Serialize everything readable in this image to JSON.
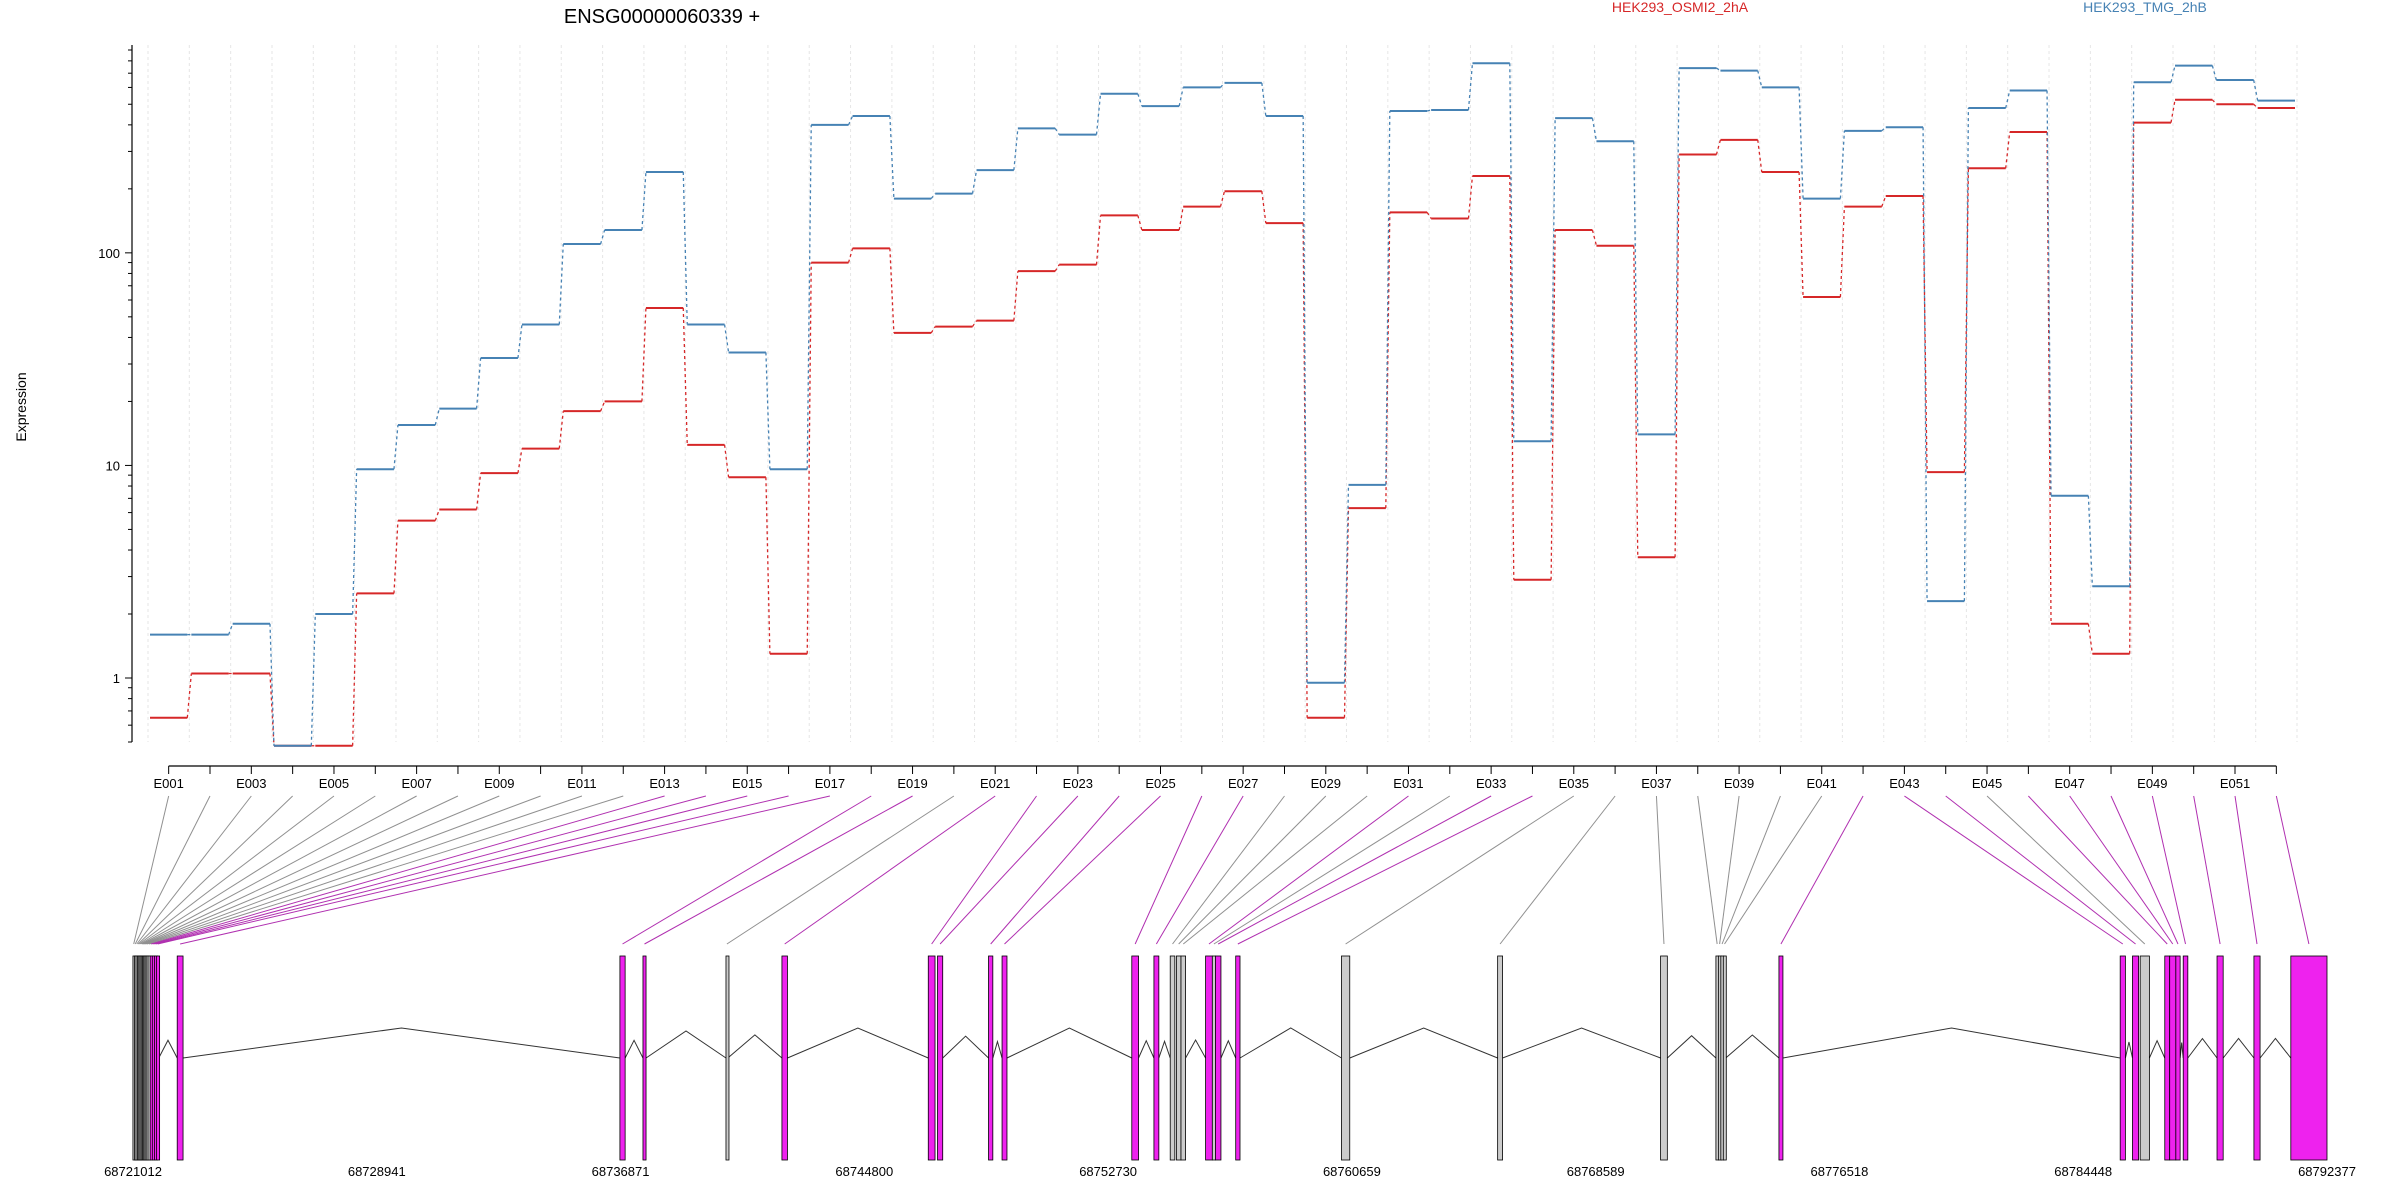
{
  "chart_data": {
    "type": "line",
    "title": "ENSG00000060339 +",
    "ylabel": "Expression",
    "xlabel": "",
    "yscale": "log",
    "ylim": [
      0.5,
      950
    ],
    "yticks": [
      1,
      10,
      100
    ],
    "ytick_labels": [
      "1",
      "10",
      "100"
    ],
    "grid": "vertical",
    "legend_position": "top",
    "categories": [
      "E001",
      "E002",
      "E003",
      "E004",
      "E005",
      "E006",
      "E007",
      "E008",
      "E009",
      "E010",
      "E011",
      "E012",
      "E013",
      "E014",
      "E015",
      "E016",
      "E017",
      "E018",
      "E019",
      "E020",
      "E021",
      "E022",
      "E023",
      "E024",
      "E025",
      "E026",
      "E027",
      "E028",
      "E029",
      "E030",
      "E031",
      "E032",
      "E033",
      "E034",
      "E035",
      "E036",
      "E037",
      "E038",
      "E039",
      "E040",
      "E041",
      "E042",
      "E043",
      "E044",
      "E045",
      "E046",
      "E047",
      "E048",
      "E049",
      "E050",
      "E051",
      "E052"
    ],
    "tick_labels": [
      "E001",
      "E003",
      "E005",
      "E007",
      "E009",
      "E011",
      "E013",
      "E015",
      "E017",
      "E019",
      "E021",
      "E023",
      "E025",
      "E027",
      "E029",
      "E031",
      "E033",
      "E035",
      "E037",
      "E039",
      "E041",
      "E043",
      "E045",
      "E047",
      "E049",
      "E051"
    ],
    "series": [
      {
        "name": "HEK293_OSMI2_2hA",
        "color": "#d62728",
        "values": [
          0.65,
          1.05,
          1.05,
          0.48,
          0.48,
          2.5,
          5.5,
          6.2,
          9.2,
          12,
          18,
          20,
          55,
          12.5,
          8.8,
          1.3,
          90,
          105,
          42,
          45,
          48,
          82,
          88,
          150,
          128,
          165,
          195,
          138,
          0.65,
          6.3,
          155,
          145,
          230,
          2.9,
          128,
          108,
          3.7,
          290,
          340,
          240,
          62,
          165,
          185,
          9.3,
          250,
          370,
          1.8,
          1.3,
          410,
          525,
          500,
          480
        ]
      },
      {
        "name": "HEK293_TMG_2hB",
        "color": "#4682b4",
        "values": [
          1.6,
          1.6,
          1.8,
          0.48,
          2.0,
          9.6,
          15.5,
          18.5,
          32,
          46,
          110,
          128,
          240,
          46,
          34,
          9.6,
          400,
          440,
          180,
          190,
          245,
          385,
          360,
          560,
          490,
          600,
          630,
          440,
          0.95,
          8.1,
          465,
          470,
          780,
          13,
          430,
          335,
          14,
          740,
          720,
          600,
          180,
          375,
          390,
          2.3,
          480,
          580,
          7.2,
          2.7,
          635,
          760,
          650,
          520
        ]
      }
    ],
    "genome": {
      "start": 68721012,
      "end": 68792377,
      "axis_labels": [
        "68721012",
        "68728941",
        "68736871",
        "68744800",
        "68752730",
        "68760659",
        "68768589",
        "68776518",
        "68784448",
        "68792377"
      ],
      "exons": [
        {
          "id": "E001",
          "start": 68721010,
          "end": 68721060,
          "sig": false
        },
        {
          "id": "E002",
          "start": 68721060,
          "end": 68721110,
          "sig": false
        },
        {
          "id": "E003",
          "start": 68721110,
          "end": 68721160,
          "sig": false
        },
        {
          "id": "E004",
          "start": 68721160,
          "end": 68721200,
          "sig": false
        },
        {
          "id": "E005",
          "start": 68721200,
          "end": 68721240,
          "sig": false
        },
        {
          "id": "E006",
          "start": 68721240,
          "end": 68721280,
          "sig": false
        },
        {
          "id": "E007",
          "start": 68721280,
          "end": 68721320,
          "sig": false
        },
        {
          "id": "E008",
          "start": 68721320,
          "end": 68721360,
          "sig": false
        },
        {
          "id": "E009",
          "start": 68721360,
          "end": 68721400,
          "sig": false
        },
        {
          "id": "E010",
          "start": 68721400,
          "end": 68721440,
          "sig": false
        },
        {
          "id": "E011",
          "start": 68721440,
          "end": 68721500,
          "sig": false
        },
        {
          "id": "E012",
          "start": 68721500,
          "end": 68721570,
          "sig": false
        },
        {
          "id": "E013",
          "start": 68721570,
          "end": 68721640,
          "sig": true
        },
        {
          "id": "E014",
          "start": 68721640,
          "end": 68721710,
          "sig": true
        },
        {
          "id": "E015",
          "start": 68721710,
          "end": 68721780,
          "sig": true
        },
        {
          "id": "E016",
          "start": 68721780,
          "end": 68721850,
          "sig": true
        },
        {
          "id": "E017",
          "start": 68722450,
          "end": 68722640,
          "sig": true
        },
        {
          "id": "E018",
          "start": 68736850,
          "end": 68737020,
          "sig": true
        },
        {
          "id": "E019",
          "start": 68737600,
          "end": 68737700,
          "sig": true
        },
        {
          "id": "E020",
          "start": 68740300,
          "end": 68740360,
          "sig": false
        },
        {
          "id": "E021",
          "start": 68742120,
          "end": 68742300,
          "sig": true
        },
        {
          "id": "E022",
          "start": 68746880,
          "end": 68747100,
          "sig": true
        },
        {
          "id": "E023",
          "start": 68747180,
          "end": 68747350,
          "sig": true
        },
        {
          "id": "E024",
          "start": 68748840,
          "end": 68748980,
          "sig": true
        },
        {
          "id": "E025",
          "start": 68749280,
          "end": 68749440,
          "sig": true
        },
        {
          "id": "E026",
          "start": 68753500,
          "end": 68753720,
          "sig": true
        },
        {
          "id": "E027",
          "start": 68754220,
          "end": 68754380,
          "sig": true
        },
        {
          "id": "E028",
          "start": 68754750,
          "end": 68754900,
          "sig": false
        },
        {
          "id": "E029",
          "start": 68754950,
          "end": 68755100,
          "sig": false
        },
        {
          "id": "E030",
          "start": 68755100,
          "end": 68755250,
          "sig": false
        },
        {
          "id": "E031",
          "start": 68755900,
          "end": 68756120,
          "sig": true
        },
        {
          "id": "E032",
          "start": 68756120,
          "end": 68756220,
          "sig": false
        },
        {
          "id": "E033",
          "start": 68756220,
          "end": 68756400,
          "sig": true
        },
        {
          "id": "E034",
          "start": 68756880,
          "end": 68757020,
          "sig": true
        },
        {
          "id": "E035",
          "start": 68760320,
          "end": 68760590,
          "sig": false
        },
        {
          "id": "E036",
          "start": 68765400,
          "end": 68765560,
          "sig": false
        },
        {
          "id": "E037",
          "start": 68770700,
          "end": 68770920,
          "sig": false
        },
        {
          "id": "E038",
          "start": 68772500,
          "end": 68772580,
          "sig": false
        },
        {
          "id": "E039",
          "start": 68772580,
          "end": 68772660,
          "sig": false
        },
        {
          "id": "E040",
          "start": 68772660,
          "end": 68772740,
          "sig": false
        },
        {
          "id": "E041",
          "start": 68772740,
          "end": 68772820,
          "sig": false
        },
        {
          "id": "E042",
          "start": 68774550,
          "end": 68774680,
          "sig": true
        },
        {
          "id": "E043",
          "start": 68785650,
          "end": 68785820,
          "sig": true
        },
        {
          "id": "E044",
          "start": 68786050,
          "end": 68786250,
          "sig": true
        },
        {
          "id": "E045",
          "start": 68786300,
          "end": 68786600,
          "sig": false
        },
        {
          "id": "E046",
          "start": 68787100,
          "end": 68787260,
          "sig": true
        },
        {
          "id": "E047",
          "start": 68787260,
          "end": 68787460,
          "sig": true
        },
        {
          "id": "E048",
          "start": 68787460,
          "end": 68787600,
          "sig": true
        },
        {
          "id": "E049",
          "start": 68787700,
          "end": 68787850,
          "sig": true
        },
        {
          "id": "E050",
          "start": 68788800,
          "end": 68789000,
          "sig": true
        },
        {
          "id": "E051",
          "start": 68790000,
          "end": 68790200,
          "sig": true
        },
        {
          "id": "E052",
          "start": 68791200,
          "end": 68792377,
          "sig": true
        }
      ]
    }
  },
  "colors": {
    "significant_exon": "#ee22ee",
    "nonsignificant_exon": "#cccccc",
    "significant_connector": "#b030b0",
    "nonsignificant_connector": "#909090",
    "grid": "#e6e6e6",
    "intron": "#333333"
  }
}
